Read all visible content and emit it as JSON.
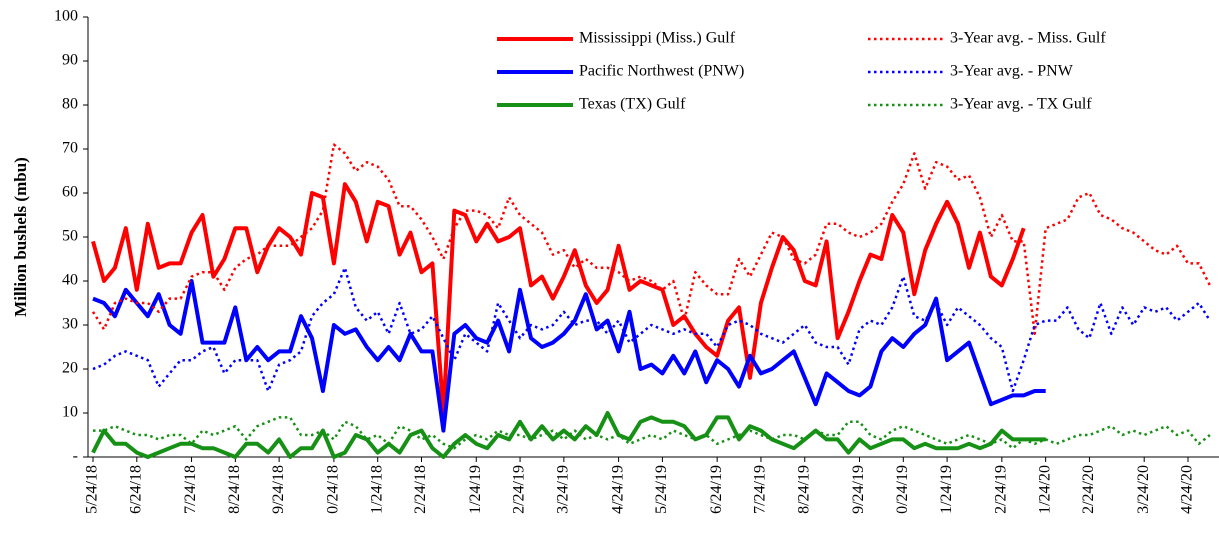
{
  "chart_data": {
    "type": "line",
    "y_label": "Million bushels (mbu)",
    "ylim": [
      0,
      100
    ],
    "yticks": [
      {
        "value": 0,
        "label": "-"
      },
      10,
      20,
      30,
      40,
      50,
      60,
      70,
      80,
      90,
      100
    ],
    "grid": false,
    "legend": "top",
    "categories": [
      "5/24/18",
      null,
      null,
      null,
      "6/24/18",
      null,
      null,
      null,
      null,
      "7/24/18",
      null,
      null,
      null,
      "8/24/18",
      null,
      null,
      null,
      "9/24/18",
      null,
      null,
      null,
      null,
      "0/24/18",
      null,
      null,
      null,
      "1/24/18",
      null,
      null,
      null,
      "2/24/18",
      null,
      null,
      null,
      null,
      "1/24/19",
      null,
      null,
      null,
      "2/24/19",
      null,
      null,
      null,
      "3/24/19",
      null,
      null,
      null,
      null,
      "4/24/19",
      null,
      null,
      null,
      "5/24/19",
      null,
      null,
      null,
      null,
      "6/24/19",
      null,
      null,
      null,
      "7/24/19",
      null,
      null,
      null,
      "8/24/19",
      null,
      null,
      null,
      null,
      "9/24/19",
      null,
      null,
      null,
      "0/24/19",
      null,
      null,
      null,
      "1/24/19",
      null,
      null,
      null,
      null,
      "2/24/19",
      null,
      null,
      null,
      "1/24/20",
      null,
      null,
      null,
      "2/24/20",
      null,
      null,
      null,
      null,
      "3/24/20",
      null,
      null,
      null,
      "4/24/20",
      null,
      null
    ],
    "series": [
      {
        "name": "Mississippi (Miss.) Gulf",
        "color": "#ff0000",
        "style": "solid",
        "values": [
          49,
          40,
          43,
          52,
          38,
          53,
          43,
          44,
          44,
          51,
          55,
          41,
          45,
          52,
          52,
          42,
          48,
          52,
          50,
          46,
          60,
          59,
          44,
          62,
          58,
          49,
          58,
          57,
          46,
          51,
          42,
          44,
          10,
          56,
          55,
          49,
          53,
          49,
          50,
          52,
          39,
          41,
          36,
          41,
          47,
          39,
          35,
          38,
          48,
          38,
          40,
          39,
          38,
          30,
          32,
          28,
          25,
          23,
          31,
          34,
          18,
          35,
          43,
          50,
          47,
          40,
          39,
          49,
          27,
          33,
          40,
          46,
          45,
          55,
          51,
          37,
          47,
          53,
          58,
          53,
          43,
          51,
          41,
          39,
          45,
          52,
          null,
          null,
          null,
          null,
          null,
          null,
          null,
          null,
          null,
          null,
          null,
          null,
          null,
          null,
          null,
          null,
          null
        ]
      },
      {
        "name": "Pacific Northwest (PNW)",
        "color": "#0000ff",
        "style": "solid",
        "values": [
          36,
          35,
          32,
          38,
          35,
          32,
          37,
          30,
          28,
          40,
          26,
          26,
          26,
          34,
          22,
          25,
          22,
          24,
          24,
          32,
          27,
          15,
          30,
          28,
          29,
          25,
          22,
          25,
          22,
          28,
          24,
          24,
          6,
          28,
          30,
          27,
          26,
          31,
          24,
          38,
          27,
          25,
          26,
          28,
          31,
          37,
          29,
          31,
          24,
          33,
          20,
          21,
          19,
          23,
          19,
          24,
          17,
          22,
          20,
          16,
          23,
          19,
          20,
          22,
          24,
          18,
          12,
          19,
          17,
          15,
          14,
          16,
          24,
          27,
          25,
          28,
          30,
          36,
          22,
          24,
          26,
          19,
          12,
          13,
          14,
          14,
          15,
          15,
          null,
          null,
          null,
          null,
          null,
          null,
          null,
          null,
          null,
          null,
          null,
          null,
          null,
          null,
          null
        ]
      },
      {
        "name": "Texas (TX) Gulf",
        "color": "#169116",
        "style": "solid",
        "values": [
          1,
          6,
          3,
          3,
          1,
          0,
          1,
          2,
          3,
          3,
          2,
          2,
          1,
          0,
          3,
          3,
          1,
          4,
          0,
          2,
          2,
          6,
          0,
          1,
          5,
          4,
          1,
          3,
          1,
          5,
          6,
          2,
          0,
          3,
          5,
          3,
          2,
          5,
          4,
          8,
          4,
          7,
          4,
          6,
          4,
          7,
          5,
          10,
          5,
          4,
          8,
          9,
          8,
          8,
          7,
          4,
          5,
          9,
          9,
          4,
          7,
          6,
          4,
          3,
          2,
          4,
          6,
          4,
          4,
          1,
          4,
          2,
          3,
          4,
          4,
          2,
          3,
          2,
          2,
          2,
          3,
          2,
          3,
          6,
          4,
          4,
          4,
          4,
          null,
          null,
          null,
          null,
          null,
          null,
          null,
          null,
          null,
          null,
          null,
          null,
          null,
          null,
          null
        ]
      },
      {
        "name": "3-Year avg. - Miss. Gulf",
        "color": "#ff0000",
        "style": "dotted",
        "values": [
          33,
          29,
          35,
          36,
          35,
          35,
          33,
          36,
          36,
          41,
          42,
          42,
          38,
          43,
          45,
          46,
          48,
          48,
          48,
          50,
          52,
          56,
          71,
          69,
          65,
          67,
          66,
          63,
          57,
          57,
          54,
          50,
          45,
          52,
          56,
          56,
          55,
          52,
          59,
          55,
          53,
          51,
          46,
          47,
          43,
          45,
          43,
          43,
          42,
          40,
          41,
          40,
          38,
          40,
          31,
          42,
          39,
          37,
          37,
          45,
          41,
          46,
          51,
          50,
          45,
          44,
          46,
          53,
          53,
          51,
          50,
          51,
          53,
          58,
          62,
          69,
          61,
          67,
          66,
          63,
          64,
          59,
          50,
          55,
          49,
          49,
          28,
          52,
          53,
          54,
          59,
          60,
          55,
          54,
          52,
          51,
          49,
          47,
          46,
          48,
          44,
          44,
          39
        ]
      },
      {
        "name": "3-Year avg. - PNW",
        "color": "#0000ff",
        "style": "dotted",
        "values": [
          20,
          21,
          23,
          24,
          23,
          22,
          16,
          19,
          22,
          22,
          24,
          25,
          19,
          22,
          22,
          22,
          15,
          21,
          22,
          24,
          32,
          35,
          37,
          43,
          34,
          31,
          33,
          28,
          35,
          28,
          29,
          32,
          27,
          22,
          28,
          26,
          24,
          35,
          31,
          27,
          30,
          29,
          30,
          33,
          30,
          31,
          31,
          28,
          31,
          26,
          28,
          30,
          29,
          28,
          29,
          28,
          28,
          25,
          30,
          31,
          30,
          28,
          27,
          26,
          28,
          30,
          26,
          25,
          25,
          21,
          29,
          31,
          30,
          34,
          41,
          32,
          31,
          35,
          30,
          34,
          32,
          30,
          27,
          25,
          15,
          22,
          30,
          31,
          31,
          34,
          29,
          27,
          35,
          28,
          34,
          30,
          34,
          33,
          34,
          31,
          33,
          35,
          31
        ]
      },
      {
        "name": "3-Year avg. - TX Gulf",
        "color": "#169116",
        "style": "dotted",
        "values": [
          6,
          6,
          7,
          6,
          5,
          5,
          4,
          5,
          5,
          3,
          6,
          5,
          6,
          7,
          4,
          7,
          8,
          9,
          9,
          5,
          5,
          6,
          4,
          8,
          7,
          4,
          5,
          3,
          7,
          6,
          4,
          5,
          3,
          2,
          4,
          5,
          4,
          6,
          5,
          5,
          4,
          5,
          6,
          4,
          6,
          4,
          5,
          4,
          5,
          3,
          4,
          5,
          4,
          6,
          5,
          4,
          5,
          3,
          4,
          5,
          6,
          5,
          4,
          5,
          5,
          4,
          6,
          5,
          5,
          8,
          8,
          5,
          4,
          6,
          7,
          6,
          5,
          4,
          3,
          4,
          5,
          4,
          3,
          4,
          2,
          4,
          3,
          4,
          3,
          4,
          5,
          5,
          6,
          7,
          5,
          6,
          5,
          6,
          7,
          5,
          6,
          3,
          5
        ]
      }
    ]
  }
}
